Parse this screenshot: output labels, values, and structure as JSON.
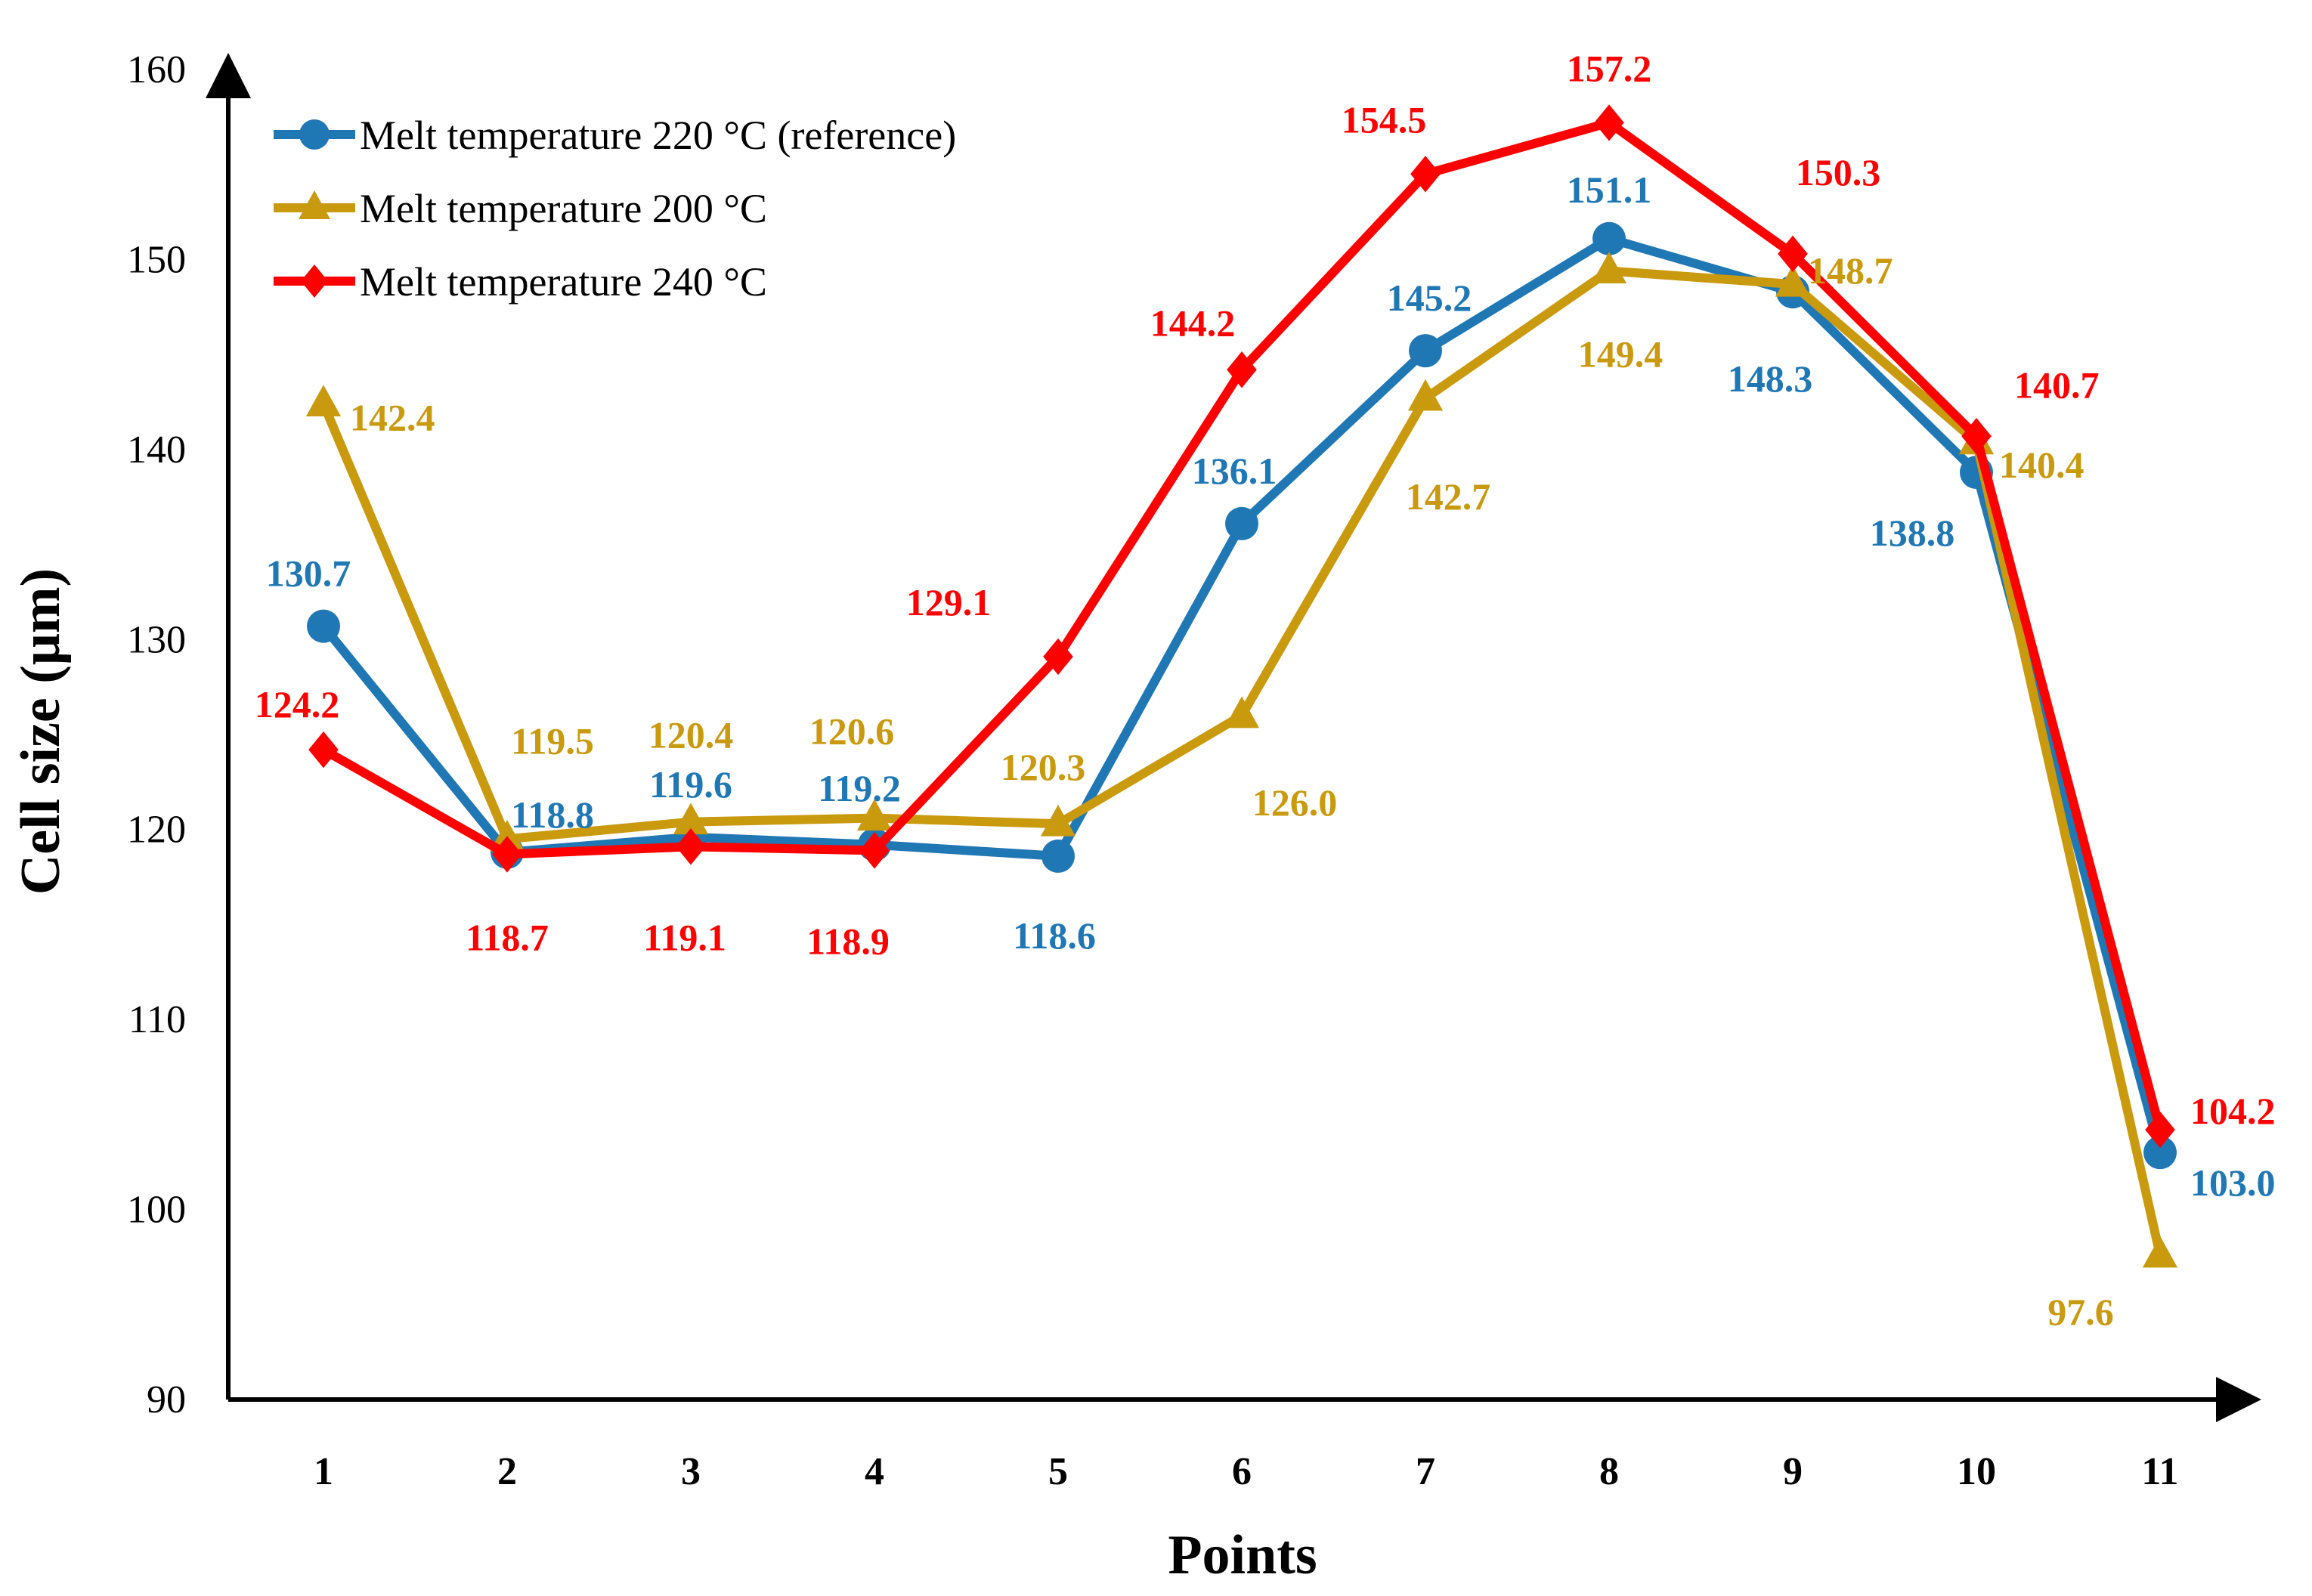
{
  "chart_data": {
    "type": "line",
    "x": [
      1,
      2,
      3,
      4,
      5,
      6,
      7,
      8,
      9,
      10,
      11
    ],
    "xlabel": "Points",
    "ylabel": "Cell size (μm)",
    "ylim": [
      90,
      160
    ],
    "yticks": [
      90,
      100,
      110,
      120,
      130,
      140,
      150,
      160
    ],
    "legend_position": "top-left",
    "grid": false,
    "series": [
      {
        "name": "Melt temperature 220 °C (reference)",
        "color": "#1f77b4",
        "marker": "circle",
        "values": [
          130.7,
          118.8,
          119.6,
          119.2,
          118.6,
          136.1,
          145.2,
          151.1,
          148.3,
          138.8,
          103.0
        ],
        "labels": [
          "130.7",
          "118.8",
          "119.6",
          "119.2",
          "118.6",
          "136.1",
          "145.2",
          "151.1",
          "148.3",
          "138.8",
          "103.0"
        ]
      },
      {
        "name": "Melt temperature 200 °C",
        "color": "#c9990e",
        "marker": "triangle",
        "values": [
          142.4,
          119.5,
          120.4,
          120.6,
          120.3,
          126.0,
          142.7,
          149.4,
          148.7,
          140.4,
          97.6
        ],
        "labels": [
          "142.4",
          "119.5",
          "120.4",
          "120.6",
          "120.3",
          "126.0",
          "142.7",
          "149.4",
          "148.7",
          "140.4",
          "97.6"
        ]
      },
      {
        "name": "Melt temperature 240 °C",
        "color": "#ff0000",
        "marker": "diamond",
        "values": [
          124.2,
          118.7,
          119.1,
          118.9,
          129.1,
          144.2,
          154.5,
          157.2,
          150.3,
          140.7,
          104.2
        ],
        "labels": [
          "124.2",
          "118.7",
          "119.1",
          "118.9",
          "129.1",
          "144.2",
          "154.5",
          "157.2",
          "150.3",
          "140.7",
          "104.2"
        ]
      }
    ]
  }
}
